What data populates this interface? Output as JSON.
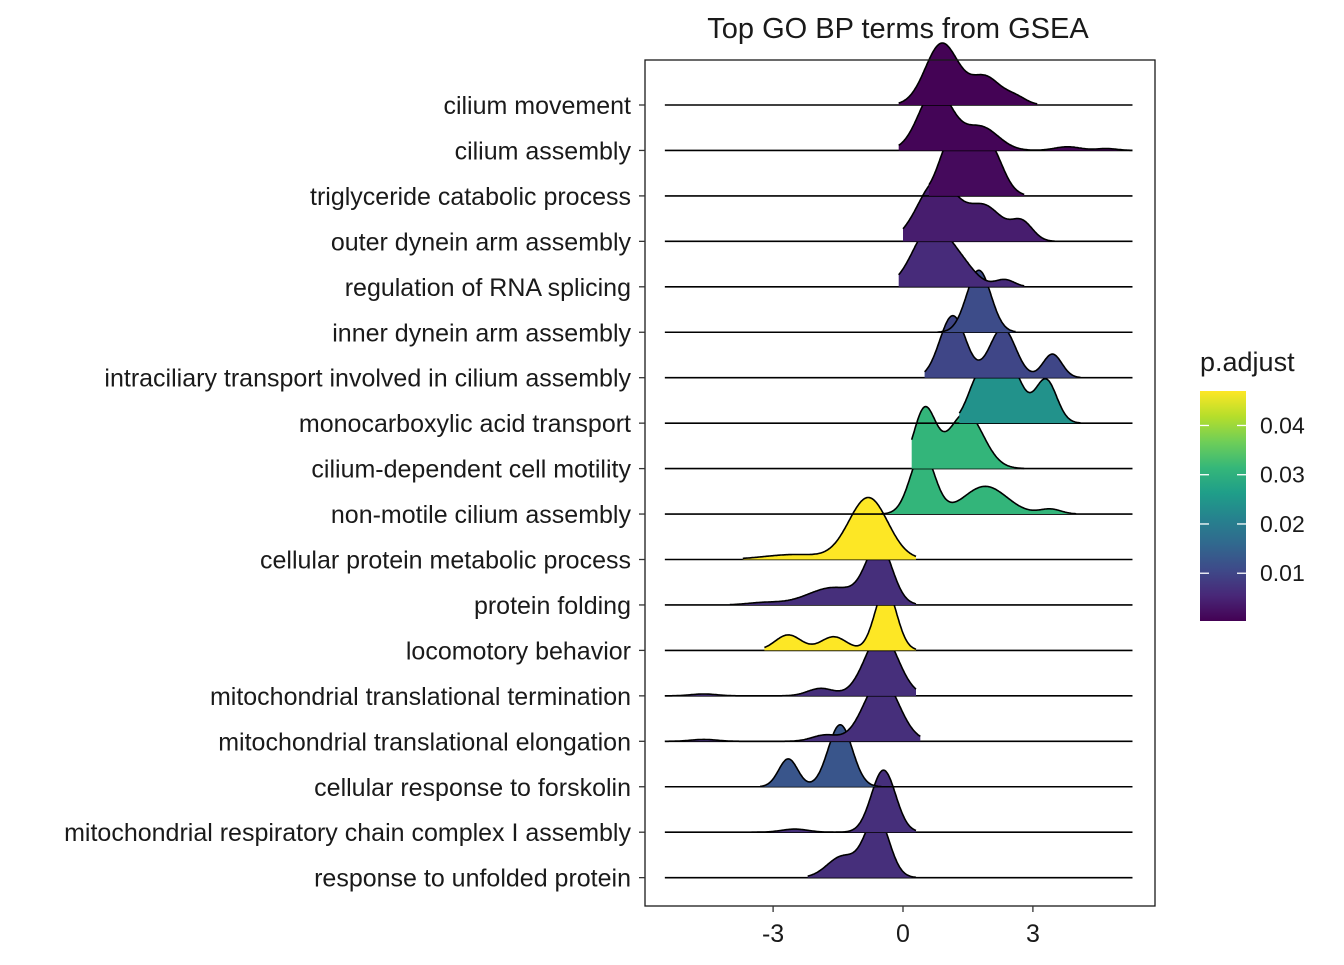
{
  "chart_data": {
    "type": "ridgeline",
    "title": "Top GO BP terms from GSEA",
    "xlabel": "",
    "ylabel": "",
    "xlim": [
      -5.5,
      5.3
    ],
    "x_ticks": [
      {
        "value": -3,
        "label": "-3"
      },
      {
        "value": 0,
        "label": "0"
      },
      {
        "value": 3,
        "label": "3"
      }
    ],
    "grid": false,
    "legend": {
      "title": "p.adjust",
      "position": "right",
      "range": [
        0.0003,
        0.047
      ],
      "ticks": [
        {
          "value": 0.04,
          "label": "0.04"
        },
        {
          "value": 0.03,
          "label": "0.03"
        },
        {
          "value": 0.02,
          "label": "0.02"
        },
        {
          "value": 0.01,
          "label": "0.01"
        }
      ],
      "colormap": [
        "#440154",
        "#482878",
        "#3e4a89",
        "#31688e",
        "#26828e",
        "#1f9e89",
        "#35b779",
        "#6ece58",
        "#b5de2b",
        "#fde725"
      ]
    },
    "series": [
      {
        "name": "cilium movement",
        "p_adjust": 0.0005,
        "range": [
          -0.1,
          3.1
        ],
        "peaks": [
          [
            0.9,
            1.0,
            0.38
          ],
          [
            1.9,
            0.45,
            0.35
          ],
          [
            2.6,
            0.12,
            0.25
          ]
        ]
      },
      {
        "name": "cilium assembly",
        "p_adjust": 0.0008,
        "range": [
          -0.1,
          5.3
        ],
        "peaks": [
          [
            0.75,
            1.0,
            0.38
          ],
          [
            1.8,
            0.38,
            0.4
          ],
          [
            3.8,
            0.06,
            0.3
          ],
          [
            4.7,
            0.03,
            0.25
          ]
        ]
      },
      {
        "name": "triglyceride catabolic process",
        "p_adjust": 0.0015,
        "range": [
          0.6,
          2.8
        ],
        "peaks": [
          [
            1.15,
            1.0,
            0.3
          ],
          [
            1.95,
            0.9,
            0.32
          ]
        ]
      },
      {
        "name": "outer dynein arm assembly",
        "p_adjust": 0.004,
        "range": [
          0.0,
          3.5
        ],
        "peaks": [
          [
            0.8,
            1.0,
            0.45
          ],
          [
            1.9,
            0.55,
            0.4
          ],
          [
            2.75,
            0.3,
            0.25
          ]
        ]
      },
      {
        "name": "regulation of RNA splicing",
        "p_adjust": 0.006,
        "range": [
          -0.1,
          2.8
        ],
        "peaks": [
          [
            0.65,
            1.0,
            0.42
          ],
          [
            1.35,
            0.3,
            0.35
          ],
          [
            2.35,
            0.12,
            0.22
          ]
        ]
      },
      {
        "name": "inner dynein arm assembly",
        "p_adjust": 0.011,
        "range": [
          0.8,
          2.6
        ],
        "peaks": [
          [
            1.75,
            1.0,
            0.28
          ]
        ]
      },
      {
        "name": "intraciliary transport involved in cilium assembly",
        "p_adjust": 0.01,
        "range": [
          0.5,
          4.1
        ],
        "peaks": [
          [
            1.15,
            1.0,
            0.3
          ],
          [
            2.3,
            0.8,
            0.3
          ],
          [
            3.45,
            0.38,
            0.22
          ]
        ]
      },
      {
        "name": "monocarboxylic acid transport",
        "p_adjust": 0.024,
        "range": [
          1.3,
          4.1
        ],
        "peaks": [
          [
            1.8,
            0.85,
            0.28
          ],
          [
            2.45,
            1.0,
            0.3
          ],
          [
            3.3,
            0.75,
            0.25
          ]
        ]
      },
      {
        "name": "cilium-dependent cell motility",
        "p_adjust": 0.031,
        "range": [
          0.2,
          2.8
        ],
        "peaks": [
          [
            0.5,
            1.0,
            0.25
          ],
          [
            1.45,
            0.95,
            0.4
          ]
        ]
      },
      {
        "name": "non-motile cilium assembly",
        "p_adjust": 0.031,
        "range": [
          -0.5,
          4.0
        ],
        "peaks": [
          [
            0.45,
            1.0,
            0.28
          ],
          [
            1.9,
            0.45,
            0.5
          ],
          [
            3.4,
            0.08,
            0.25
          ]
        ]
      },
      {
        "name": "cellular protein metabolic process",
        "p_adjust": 0.047,
        "range": [
          -3.7,
          0.3
        ],
        "peaks": [
          [
            -0.8,
            1.0,
            0.45
          ],
          [
            -2.5,
            0.08,
            0.7
          ]
        ]
      },
      {
        "name": "protein folding",
        "p_adjust": 0.0065,
        "range": [
          -4.0,
          0.3
        ],
        "peaks": [
          [
            -0.55,
            1.0,
            0.3
          ],
          [
            -1.6,
            0.3,
            0.6
          ],
          [
            -3.2,
            0.04,
            0.4
          ]
        ]
      },
      {
        "name": "locomotory behavior",
        "p_adjust": 0.047,
        "range": [
          -3.2,
          0.3
        ],
        "peaks": [
          [
            -0.4,
            1.0,
            0.25
          ],
          [
            -2.65,
            0.25,
            0.3
          ],
          [
            -1.6,
            0.22,
            0.3
          ]
        ]
      },
      {
        "name": "mitochondrial translational termination",
        "p_adjust": 0.0065,
        "range": [
          -5.5,
          0.3
        ],
        "peaks": [
          [
            -0.5,
            1.0,
            0.38
          ],
          [
            -1.9,
            0.12,
            0.3
          ],
          [
            -4.6,
            0.03,
            0.3
          ]
        ]
      },
      {
        "name": "mitochondrial translational elongation",
        "p_adjust": 0.0065,
        "range": [
          -5.5,
          0.4
        ],
        "peaks": [
          [
            -0.5,
            1.0,
            0.4
          ],
          [
            -1.8,
            0.1,
            0.3
          ],
          [
            -4.6,
            0.03,
            0.3
          ]
        ]
      },
      {
        "name": "cellular response to forskolin",
        "p_adjust": 0.0125,
        "range": [
          -3.3,
          -0.5
        ],
        "peaks": [
          [
            -1.45,
            1.0,
            0.28
          ],
          [
            -2.65,
            0.45,
            0.22
          ]
        ]
      },
      {
        "name": "mitochondrial respiratory chain complex I assembly",
        "p_adjust": 0.0065,
        "range": [
          -3.5,
          0.3
        ],
        "peaks": [
          [
            -0.45,
            1.0,
            0.28
          ],
          [
            -2.5,
            0.05,
            0.3
          ]
        ]
      },
      {
        "name": "response to unfolded protein",
        "p_adjust": 0.0065,
        "range": [
          -2.2,
          0.3
        ],
        "peaks": [
          [
            -0.6,
            1.0,
            0.28
          ],
          [
            -1.4,
            0.35,
            0.35
          ]
        ]
      }
    ]
  }
}
